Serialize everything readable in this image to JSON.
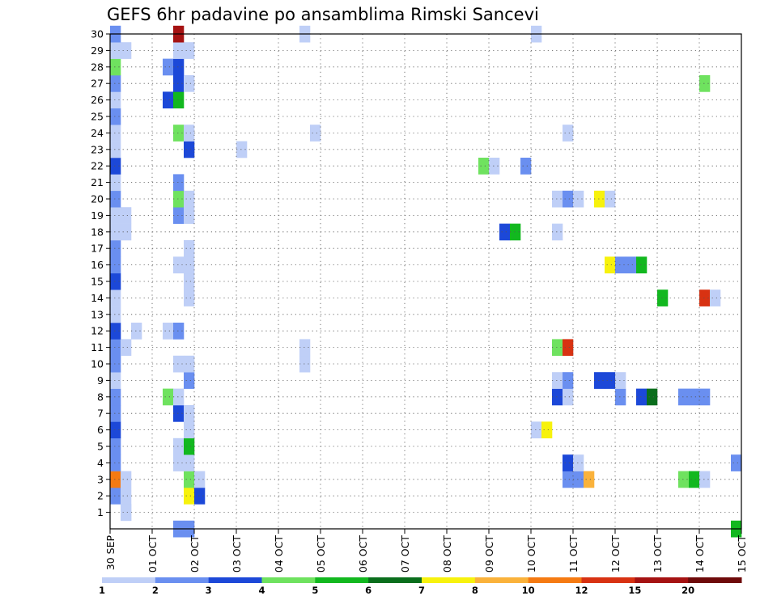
{
  "chart_data": {
    "type": "heatmap",
    "title": "GEFS 6hr padavine po ansamblima Rimski Sancevi",
    "x_tick_labels": [
      "30 SEP",
      "01 OCT",
      "02 OCT",
      "03 OCT",
      "04 OCT",
      "05 OCT",
      "06 OCT",
      "07 OCT",
      "08 OCT",
      "09 OCT",
      "10 OCT",
      "11 OCT",
      "12 OCT",
      "13 OCT",
      "14 OCT",
      "15 OCT"
    ],
    "y_tick_labels": [
      "1",
      "2",
      "3",
      "4",
      "5",
      "6",
      "7",
      "8",
      "9",
      "10",
      "11",
      "12",
      "13",
      "14",
      "15",
      "16",
      "17",
      "18",
      "19",
      "20",
      "21",
      "22",
      "23",
      "24",
      "25",
      "26",
      "27",
      "28",
      "29",
      "30"
    ],
    "xlim": [
      0,
      60
    ],
    "ylim": [
      0,
      30
    ],
    "x_unit": "6-hour step from 30 SEP 00UTC",
    "grid": true,
    "color_levels": [
      {
        "label": "1",
        "color": "#bfcff7"
      },
      {
        "label": "2",
        "color": "#6a8ff0"
      },
      {
        "label": "3",
        "color": "#1c48d8"
      },
      {
        "label": "4",
        "color": "#6fe25f"
      },
      {
        "label": "5",
        "color": "#12b81f"
      },
      {
        "label": "6",
        "color": "#0a6e1c"
      },
      {
        "label": "7",
        "color": "#f7f20d"
      },
      {
        "label": "8",
        "color": "#fab23b"
      },
      {
        "label": "10",
        "color": "#f57a12"
      },
      {
        "label": "12",
        "color": "#d83212"
      },
      {
        "label": "15",
        "color": "#a51212"
      },
      {
        "label": "20",
        "color": "#6e0a0a"
      }
    ],
    "cells": [
      {
        "m": 1,
        "t": 1,
        "c": 0
      },
      {
        "m": 1,
        "t": 1,
        "c": 0
      },
      {
        "m": 2,
        "t": 0,
        "c": 1
      },
      {
        "m": 2,
        "t": 1,
        "c": 0
      },
      {
        "m": 2,
        "t": 7,
        "c": 6
      },
      {
        "m": 2,
        "t": 8,
        "c": 2
      },
      {
        "m": 3,
        "t": 0,
        "c": 8
      },
      {
        "m": 3,
        "t": 1,
        "c": 0
      },
      {
        "m": 3,
        "t": 7,
        "c": 3
      },
      {
        "m": 3,
        "t": 8,
        "c": 0
      },
      {
        "m": 3,
        "t": 43,
        "c": 1
      },
      {
        "m": 3,
        "t": 44,
        "c": 1
      },
      {
        "m": 3,
        "t": 45,
        "c": 7
      },
      {
        "m": 3,
        "t": 54,
        "c": 3
      },
      {
        "m": 3,
        "t": 55,
        "c": 4
      },
      {
        "m": 3,
        "t": 56,
        "c": 0
      },
      {
        "m": 4,
        "t": 0,
        "c": 1
      },
      {
        "m": 4,
        "t": 6,
        "c": 0
      },
      {
        "m": 4,
        "t": 7,
        "c": 0
      },
      {
        "m": 4,
        "t": 43,
        "c": 2
      },
      {
        "m": 4,
        "t": 44,
        "c": 0
      },
      {
        "m": 4,
        "t": 59,
        "c": 1
      },
      {
        "m": 5,
        "t": 0,
        "c": 1
      },
      {
        "m": 5,
        "t": 6,
        "c": 0
      },
      {
        "m": 5,
        "t": 7,
        "c": 4
      },
      {
        "m": 6,
        "t": 0,
        "c": 2
      },
      {
        "m": 6,
        "t": 7,
        "c": 0
      },
      {
        "m": 6,
        "t": 40,
        "c": 0
      },
      {
        "m": 6,
        "t": 41,
        "c": 6
      },
      {
        "m": 7,
        "t": 0,
        "c": 1
      },
      {
        "m": 7,
        "t": 6,
        "c": 2
      },
      {
        "m": 7,
        "t": 7,
        "c": 0
      },
      {
        "m": 8,
        "t": 0,
        "c": 1
      },
      {
        "m": 8,
        "t": 5,
        "c": 3
      },
      {
        "m": 8,
        "t": 6,
        "c": 0
      },
      {
        "m": 8,
        "t": 42,
        "c": 2
      },
      {
        "m": 8,
        "t": 43,
        "c": 0
      },
      {
        "m": 8,
        "t": 48,
        "c": 1
      },
      {
        "m": 8,
        "t": 50,
        "c": 2
      },
      {
        "m": 8,
        "t": 51,
        "c": 5
      },
      {
        "m": 8,
        "t": 54,
        "c": 1
      },
      {
        "m": 8,
        "t": 55,
        "c": 1
      },
      {
        "m": 8,
        "t": 56,
        "c": 1
      },
      {
        "m": 9,
        "t": 0,
        "c": 0
      },
      {
        "m": 9,
        "t": 7,
        "c": 1
      },
      {
        "m": 9,
        "t": 42,
        "c": 0
      },
      {
        "m": 9,
        "t": 43,
        "c": 1
      },
      {
        "m": 9,
        "t": 46,
        "c": 2
      },
      {
        "m": 9,
        "t": 47,
        "c": 2
      },
      {
        "m": 9,
        "t": 48,
        "c": 0
      },
      {
        "m": 10,
        "t": 0,
        "c": 1
      },
      {
        "m": 10,
        "t": 6,
        "c": 0
      },
      {
        "m": 10,
        "t": 7,
        "c": 0
      },
      {
        "m": 10,
        "t": 18,
        "c": 0
      },
      {
        "m": 11,
        "t": 0,
        "c": 1
      },
      {
        "m": 11,
        "t": 1,
        "c": 0
      },
      {
        "m": 11,
        "t": 18,
        "c": 0
      },
      {
        "m": 11,
        "t": 42,
        "c": 3
      },
      {
        "m": 11,
        "t": 43,
        "c": 9
      },
      {
        "m": 12,
        "t": 0,
        "c": 2
      },
      {
        "m": 12,
        "t": 2,
        "c": 0
      },
      {
        "m": 12,
        "t": 5,
        "c": 0
      },
      {
        "m": 12,
        "t": 6,
        "c": 1
      },
      {
        "m": 13,
        "t": 0,
        "c": 0
      },
      {
        "m": 14,
        "t": 0,
        "c": 0
      },
      {
        "m": 14,
        "t": 7,
        "c": 0
      },
      {
        "m": 14,
        "t": 52,
        "c": 4
      },
      {
        "m": 14,
        "t": 56,
        "c": 9
      },
      {
        "m": 14,
        "t": 57,
        "c": 0
      },
      {
        "m": 15,
        "t": 0,
        "c": 2
      },
      {
        "m": 15,
        "t": 7,
        "c": 0
      },
      {
        "m": 16,
        "t": 0,
        "c": 1
      },
      {
        "m": 16,
        "t": 6,
        "c": 0
      },
      {
        "m": 16,
        "t": 7,
        "c": 0
      },
      {
        "m": 16,
        "t": 47,
        "c": 6
      },
      {
        "m": 16,
        "t": 48,
        "c": 1
      },
      {
        "m": 16,
        "t": 49,
        "c": 1
      },
      {
        "m": 16,
        "t": 50,
        "c": 4
      },
      {
        "m": 17,
        "t": 0,
        "c": 1
      },
      {
        "m": 17,
        "t": 7,
        "c": 0
      },
      {
        "m": 18,
        "t": 0,
        "c": 0
      },
      {
        "m": 18,
        "t": 1,
        "c": 0
      },
      {
        "m": 18,
        "t": 37,
        "c": 2
      },
      {
        "m": 18,
        "t": 38,
        "c": 4
      },
      {
        "m": 18,
        "t": 42,
        "c": 0
      },
      {
        "m": 19,
        "t": 0,
        "c": 0
      },
      {
        "m": 19,
        "t": 1,
        "c": 0
      },
      {
        "m": 19,
        "t": 6,
        "c": 1
      },
      {
        "m": 19,
        "t": 7,
        "c": 0
      },
      {
        "m": 20,
        "t": 0,
        "c": 1
      },
      {
        "m": 20,
        "t": 6,
        "c": 3
      },
      {
        "m": 20,
        "t": 7,
        "c": 0
      },
      {
        "m": 20,
        "t": 42,
        "c": 0
      },
      {
        "m": 20,
        "t": 43,
        "c": 1
      },
      {
        "m": 20,
        "t": 44,
        "c": 0
      },
      {
        "m": 20,
        "t": 46,
        "c": 6
      },
      {
        "m": 20,
        "t": 47,
        "c": 0
      },
      {
        "m": 21,
        "t": 0,
        "c": 0
      },
      {
        "m": 21,
        "t": 6,
        "c": 1
      },
      {
        "m": 22,
        "t": 0,
        "c": 2
      },
      {
        "m": 22,
        "t": 35,
        "c": 3
      },
      {
        "m": 22,
        "t": 36,
        "c": 0
      },
      {
        "m": 22,
        "t": 39,
        "c": 1
      },
      {
        "m": 23,
        "t": 0,
        "c": 0
      },
      {
        "m": 23,
        "t": 7,
        "c": 2
      },
      {
        "m": 23,
        "t": 12,
        "c": 0
      },
      {
        "m": 24,
        "t": 0,
        "c": 0
      },
      {
        "m": 24,
        "t": 6,
        "c": 3
      },
      {
        "m": 24,
        "t": 7,
        "c": 0
      },
      {
        "m": 24,
        "t": 19,
        "c": 0
      },
      {
        "m": 24,
        "t": 43,
        "c": 0
      },
      {
        "m": 25,
        "t": 0,
        "c": 1
      },
      {
        "m": 26,
        "t": 0,
        "c": 0
      },
      {
        "m": 26,
        "t": 5,
        "c": 2
      },
      {
        "m": 26,
        "t": 6,
        "c": 4
      },
      {
        "m": 27,
        "t": 0,
        "c": 1
      },
      {
        "m": 27,
        "t": 6,
        "c": 2
      },
      {
        "m": 27,
        "t": 7,
        "c": 0
      },
      {
        "m": 27,
        "t": 56,
        "c": 3
      },
      {
        "m": 28,
        "t": 0,
        "c": 3
      },
      {
        "m": 28,
        "t": 5,
        "c": 1
      },
      {
        "m": 28,
        "t": 6,
        "c": 2
      },
      {
        "m": 29,
        "t": 0,
        "c": 0
      },
      {
        "m": 29,
        "t": 1,
        "c": 0
      },
      {
        "m": 29,
        "t": 6,
        "c": 0
      },
      {
        "m": 29,
        "t": 7,
        "c": 0
      },
      {
        "m": 30,
        "t": 0,
        "c": 1
      },
      {
        "m": 30,
        "t": 6,
        "c": 10
      },
      {
        "m": 30,
        "t": 18,
        "c": 0
      },
      {
        "m": 30,
        "t": 40,
        "c": 0
      },
      {
        "m": 0,
        "t": 6,
        "c": 1
      },
      {
        "m": 0,
        "t": 7,
        "c": 1
      },
      {
        "m": 0,
        "t": 59,
        "c": 4
      }
    ]
  }
}
